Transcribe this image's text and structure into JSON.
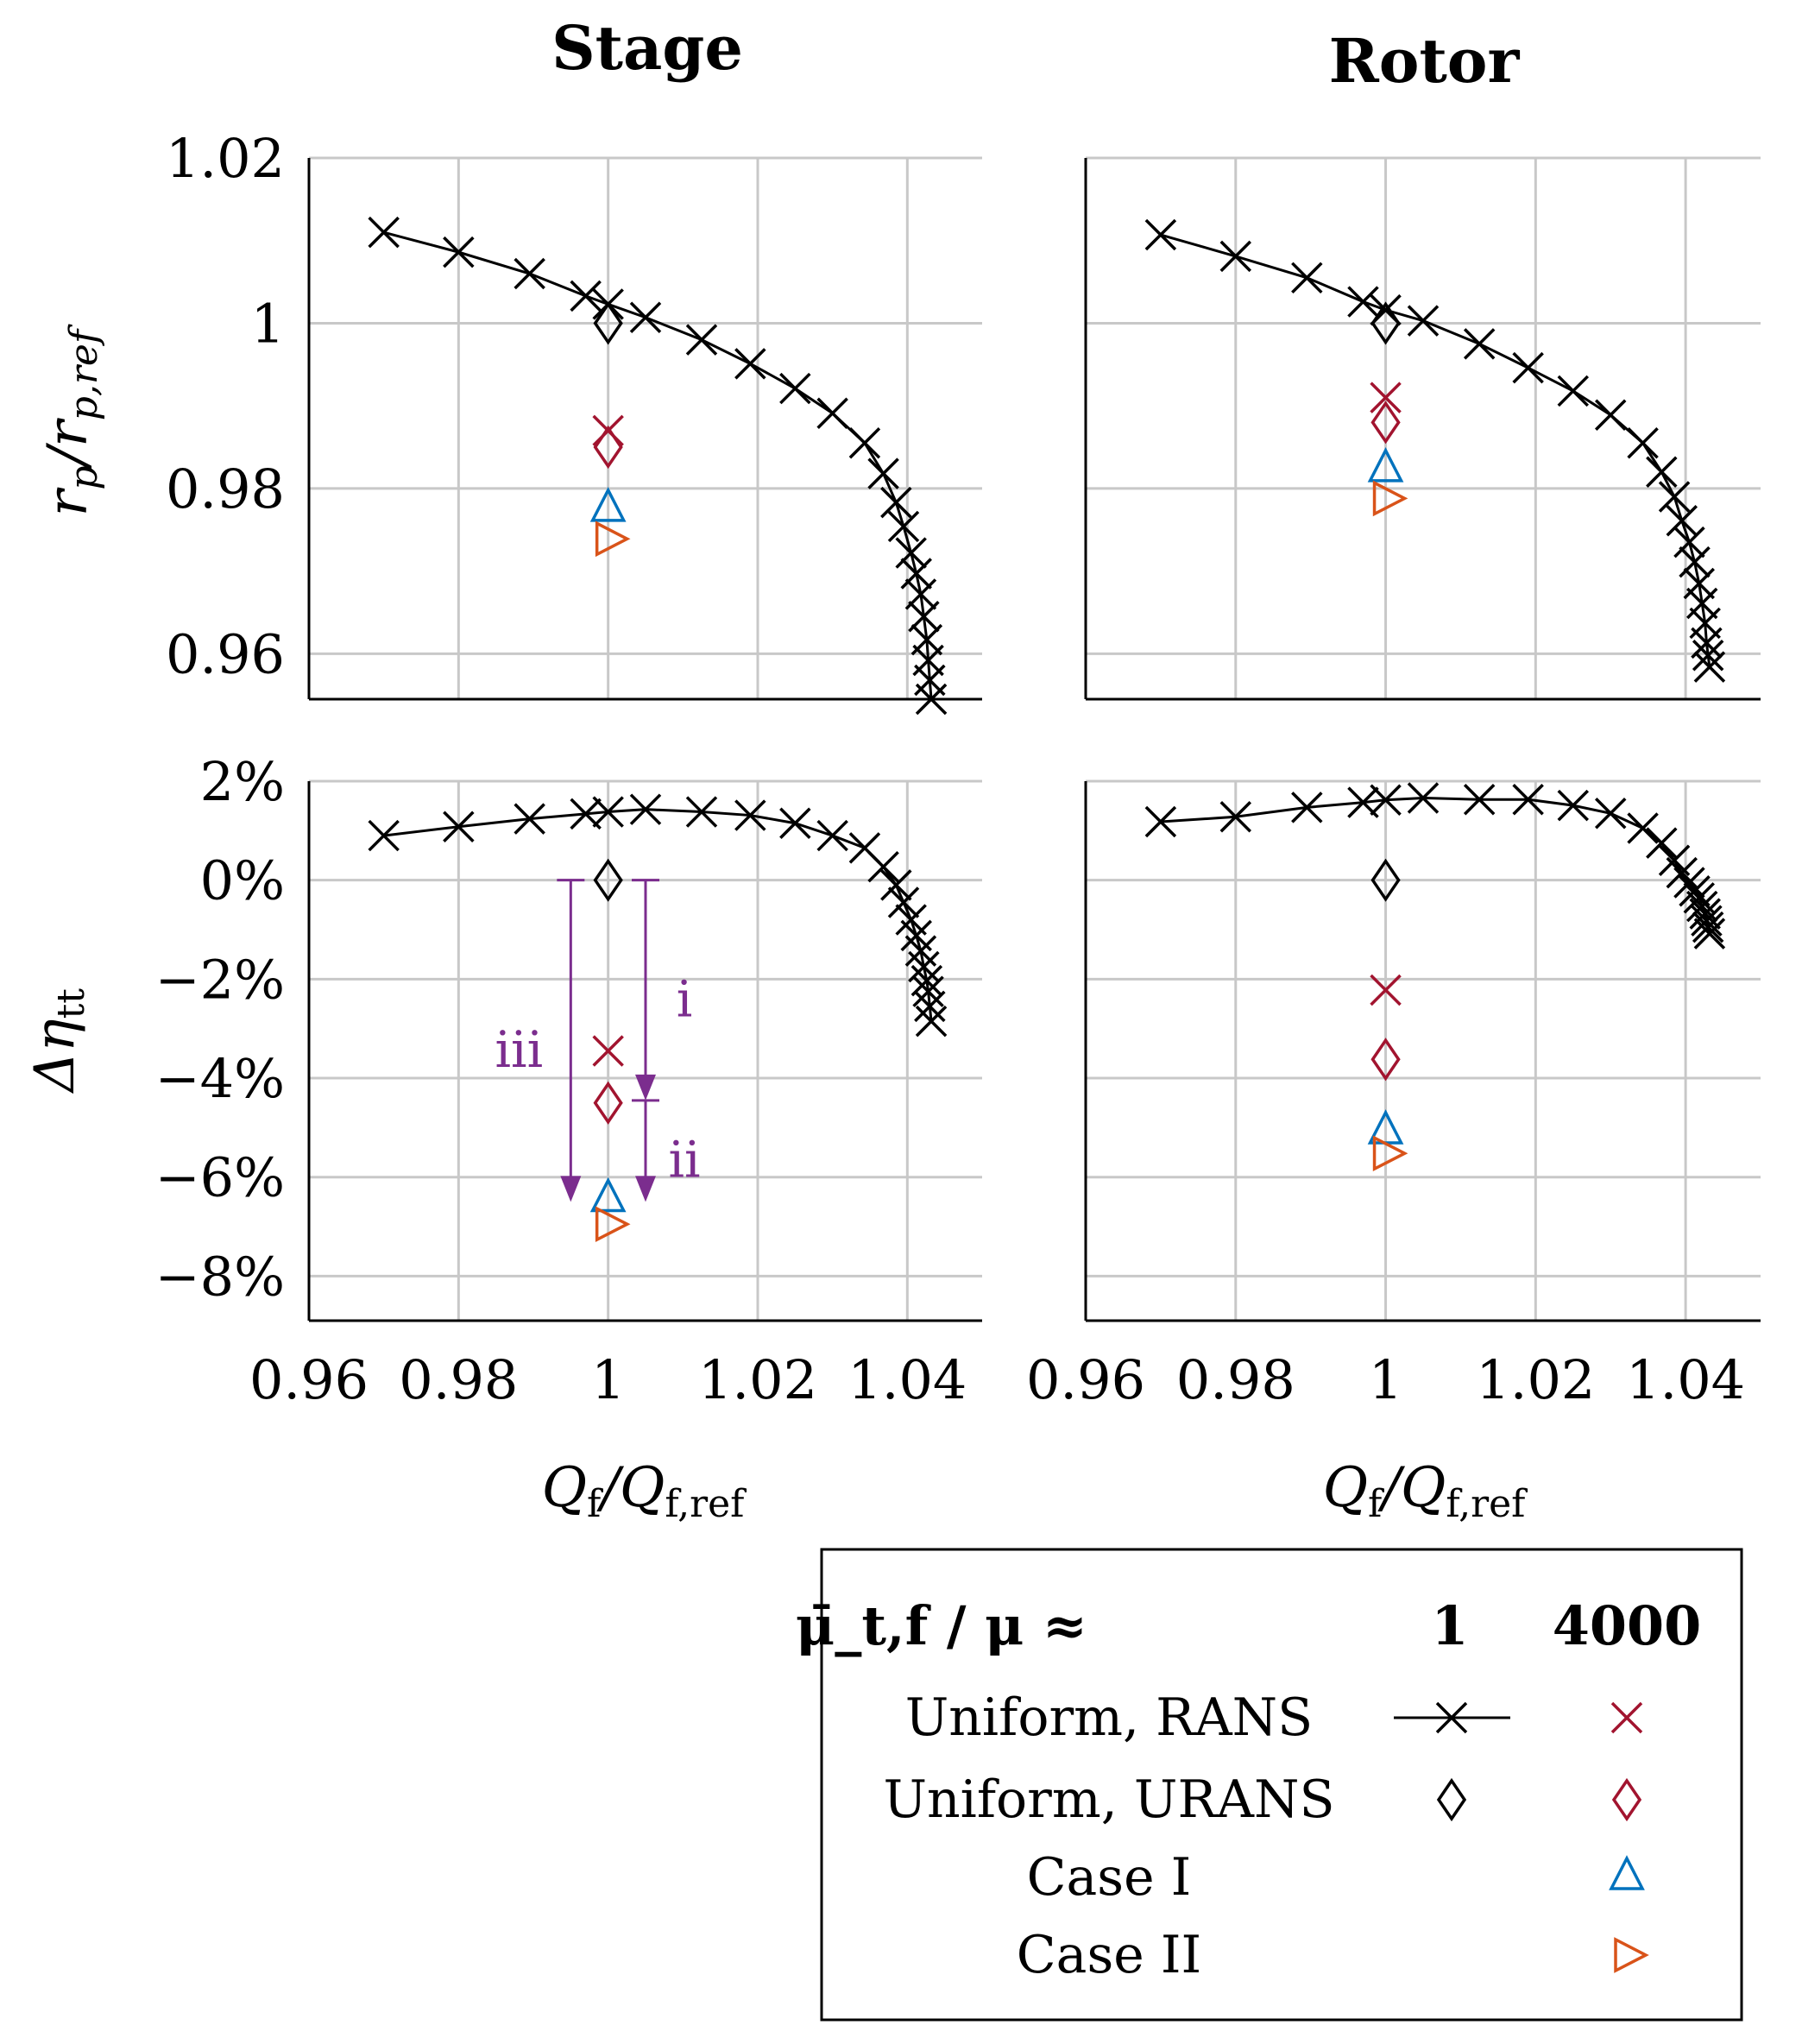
{
  "chart_data": {
    "type": "scatter",
    "columns": [
      "Stage",
      "Rotor"
    ],
    "x_label": "Q_f / Q_f,ref",
    "x_ticks": [
      0.96,
      0.98,
      1,
      1.02,
      1.04
    ],
    "x_tick_labels": [
      "0.96",
      "0.98",
      "1",
      "1.02",
      "1.04"
    ],
    "xlim": [
      0.96,
      1.05
    ],
    "rows": [
      {
        "key": "rp",
        "y_label": "r_p / r_p,ref",
        "ylim": [
          0.9545,
          1.02
        ],
        "y_ticks": [
          0.96,
          0.98,
          1,
          1.02
        ],
        "y_tick_labels": [
          "0.96",
          "0.98",
          "1",
          "1.02"
        ]
      },
      {
        "key": "eta",
        "y_label": "Δη_tt",
        "ylim": [
          -0.089,
          0.02
        ],
        "y_ticks": [
          -0.08,
          -0.06,
          -0.04,
          -0.02,
          0,
          0.02
        ],
        "y_tick_labels": [
          "−8%",
          "−6%",
          "−4%",
          "−2%",
          "0%",
          "2%"
        ]
      }
    ],
    "panels": [
      {
        "column": "Stage",
        "row": "rp",
        "rans_line": {
          "x": [
            0.97,
            0.98,
            0.9895,
            0.997,
            1.0,
            1.005,
            1.0125,
            1.019,
            1.025,
            1.03,
            1.0343,
            1.0368,
            1.0385,
            1.0395,
            1.0405,
            1.0412,
            1.0418,
            1.0422,
            1.0426,
            1.0428,
            1.043,
            1.0432
          ],
          "y": [
            1.011,
            1.0086,
            1.006,
            1.0033,
            1.0023,
            1.0007,
            0.998,
            0.9951,
            0.9921,
            0.9891,
            0.9855,
            0.9818,
            0.9783,
            0.9754,
            0.9722,
            0.9697,
            0.9672,
            0.9645,
            0.9617,
            0.9592,
            0.9568,
            0.9545
          ]
        },
        "points": [
          {
            "series": "Uniform, URANS (1)",
            "x": 1.0,
            "y": 1.0
          },
          {
            "series": "Uniform, RANS (4000)",
            "x": 1.0,
            "y": 0.987
          },
          {
            "series": "Uniform, URANS (4000)",
            "x": 1.0,
            "y": 0.985
          },
          {
            "series": "Case I (4000)",
            "x": 1.0,
            "y": 0.9775
          },
          {
            "series": "Case II (4000)",
            "x": 1.0,
            "y": 0.9739
          }
        ]
      },
      {
        "column": "Rotor",
        "row": "rp",
        "rans_line": {
          "x": [
            0.97,
            0.98,
            0.9895,
            0.997,
            1.0,
            1.005,
            1.0125,
            1.019,
            1.025,
            1.03,
            1.0343,
            1.0368,
            1.0385,
            1.0395,
            1.0405,
            1.0412,
            1.0418,
            1.0422,
            1.0426,
            1.0428,
            1.043,
            1.0432
          ],
          "y": [
            1.0107,
            1.0081,
            1.0055,
            1.0026,
            1.0016,
            1.0003,
            0.9975,
            0.9946,
            0.9918,
            0.9889,
            0.9855,
            0.982,
            0.979,
            0.9761,
            0.9735,
            0.9711,
            0.9685,
            0.9661,
            0.9637,
            0.9613,
            0.9598,
            0.9584
          ]
        },
        "points": [
          {
            "series": "Uniform, URANS (1)",
            "x": 1.0,
            "y": 1.0
          },
          {
            "series": "Uniform, RANS (4000)",
            "x": 1.0,
            "y": 0.991
          },
          {
            "series": "Uniform, URANS (4000)",
            "x": 1.0,
            "y": 0.988
          },
          {
            "series": "Case I (4000)",
            "x": 1.0,
            "y": 0.9823
          },
          {
            "series": "Case II (4000)",
            "x": 1.0,
            "y": 0.9788
          }
        ]
      },
      {
        "column": "Stage",
        "row": "eta",
        "rans_line": {
          "x": [
            0.97,
            0.98,
            0.9895,
            0.997,
            1.0,
            1.005,
            1.0125,
            1.019,
            1.025,
            1.03,
            1.0343,
            1.0368,
            1.0385,
            1.0395,
            1.0405,
            1.0412,
            1.0418,
            1.0422,
            1.0426,
            1.0428,
            1.043,
            1.0432
          ],
          "y": [
            0.009,
            0.0108,
            0.0124,
            0.0134,
            0.0138,
            0.0143,
            0.0138,
            0.0131,
            0.0115,
            0.009,
            0.0065,
            0.0027,
            -0.001,
            -0.0045,
            -0.008,
            -0.0112,
            -0.0143,
            -0.0175,
            -0.0203,
            -0.0225,
            -0.0255,
            -0.0285
          ]
        },
        "points": [
          {
            "series": "Uniform, URANS (1)",
            "x": 1.0,
            "y": 0.0
          },
          {
            "series": "Uniform, RANS (4000)",
            "x": 1.0,
            "y": -0.0345
          },
          {
            "series": "Uniform, URANS (4000)",
            "x": 1.0,
            "y": -0.045
          },
          {
            "series": "Case I (4000)",
            "x": 1.0,
            "y": -0.0645
          },
          {
            "series": "Case II (4000)",
            "x": 1.0,
            "y": -0.0695
          }
        ],
        "annotations": [
          {
            "label": "iii",
            "x": 0.995,
            "from": 0.0,
            "to": -0.065
          },
          {
            "label": "i",
            "x": 1.005,
            "from": 0.0,
            "to": -0.0445
          },
          {
            "label": "ii",
            "x": 1.005,
            "from": -0.0445,
            "to": -0.065
          }
        ]
      },
      {
        "column": "Rotor",
        "row": "eta",
        "rans_line": {
          "x": [
            0.97,
            0.98,
            0.9895,
            0.997,
            1.0,
            1.005,
            1.0125,
            1.019,
            1.025,
            1.03,
            1.0343,
            1.0368,
            1.0385,
            1.0395,
            1.0405,
            1.0412,
            1.0418,
            1.0422,
            1.0426,
            1.0428,
            1.043,
            1.0432
          ],
          "y": [
            0.0118,
            0.0128,
            0.0147,
            0.0157,
            0.0162,
            0.0166,
            0.0163,
            0.0163,
            0.0151,
            0.0135,
            0.0105,
            0.0075,
            0.004,
            0.0015,
            -0.0005,
            -0.0022,
            -0.0036,
            -0.0053,
            -0.0068,
            -0.0082,
            -0.0095,
            -0.0108
          ]
        },
        "points": [
          {
            "series": "Uniform, URANS (1)",
            "x": 1.0,
            "y": 0.0
          },
          {
            "series": "Uniform, RANS (4000)",
            "x": 1.0,
            "y": -0.0222
          },
          {
            "series": "Uniform, URANS (4000)",
            "x": 1.0,
            "y": -0.0362
          },
          {
            "series": "Case I (4000)",
            "x": 1.0,
            "y": -0.0508
          },
          {
            "series": "Case II (4000)",
            "x": 1.0,
            "y": -0.0552
          }
        ]
      }
    ],
    "legend": {
      "placement": "bottom-right",
      "header": "μ̄_t,f / μ ≈",
      "columns": [
        "1",
        "4000"
      ],
      "entries": [
        "Uniform, RANS",
        "Uniform, URANS",
        "Case I",
        "Case II"
      ]
    }
  },
  "series_styles": {
    "Uniform, RANS (1)": {
      "marker": "x",
      "color": "#000000"
    },
    "Uniform, URANS (1)": {
      "marker": "diamond",
      "color": "#000000"
    },
    "Uniform, RANS (4000)": {
      "marker": "x",
      "color": "#A2142F"
    },
    "Uniform, URANS (4000)": {
      "marker": "diamond",
      "color": "#A2142F"
    },
    "Case I (4000)": {
      "marker": "triangle-up",
      "color": "#0072BD"
    },
    "Case II (4000)": {
      "marker": "triangle-right",
      "color": "#D95319"
    }
  },
  "annotation_color": "#7B2D8E"
}
